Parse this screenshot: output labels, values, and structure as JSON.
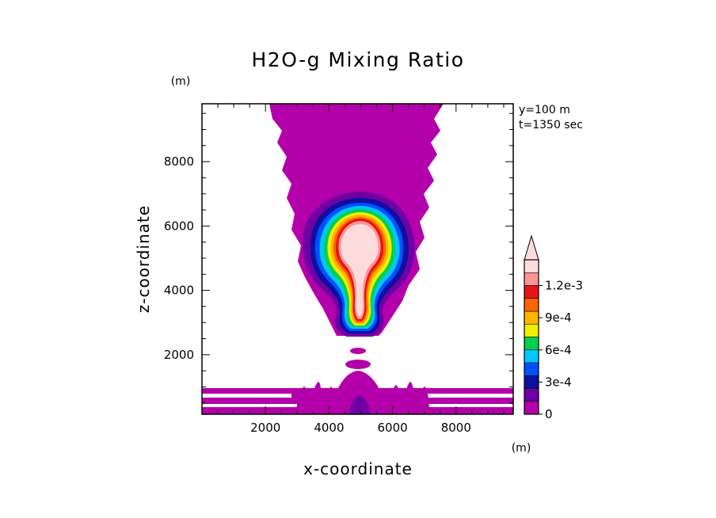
{
  "chart_data": {
    "type": "heatmap",
    "title": "H2O-g Mixing Ratio",
    "xlabel": "x-coordinate",
    "ylabel": "z-coordinate",
    "xunit": "(m)",
    "yunit": "(m)",
    "xlim": [
      0,
      9800
    ],
    "ylim": [
      150,
      9800
    ],
    "xticks": [
      2000,
      4000,
      6000,
      8000
    ],
    "xtick_labels": [
      "2000",
      "4000",
      "6000",
      "8000"
    ],
    "yticks": [
      2000,
      4000,
      6000,
      8000
    ],
    "ytick_labels": [
      "2000",
      "4000",
      "6000",
      "8000"
    ],
    "annotations": [
      "y=100 m",
      "t=1350 sec"
    ],
    "colorbar": {
      "levels": [
        0,
        0.00015,
        0.0003,
        0.00045,
        0.0006,
        0.00075,
        0.0009,
        0.00105,
        0.0012
      ],
      "labeled_levels": [
        0,
        0.0003,
        0.0006,
        0.0009,
        0.0012
      ],
      "labels": [
        "0",
        "3e-4",
        "6e-4",
        "9e-4",
        "1.2e-3"
      ],
      "colors": [
        "#b400aa",
        "#6e00a5",
        "#0a10a0",
        "#0050ff",
        "#00c8ff",
        "#00d050",
        "#f0f000",
        "#ffb400",
        "#ff6400",
        "#e61414",
        "#ff9696",
        "#ffdcdc"
      ],
      "extend": "max"
    },
    "regions": [
      {
        "name": "upper anvil",
        "level_index": 0,
        "x_range": [
          2200,
          7600
        ],
        "z_range": [
          5300,
          9800
        ]
      },
      {
        "name": "cloud core",
        "level_index": 11,
        "x_range": [
          3900,
          6100
        ],
        "z_range": [
          2700,
          6400
        ],
        "max_value": "1.2e-3"
      },
      {
        "name": "surface layer",
        "level_index": 0,
        "x_range": [
          0,
          9800
        ],
        "z_range": [
          150,
          900
        ]
      },
      {
        "name": "surface bump",
        "level_index": 1,
        "x_range": [
          4300,
          5600
        ],
        "z_range": [
          150,
          1300
        ]
      }
    ]
  }
}
